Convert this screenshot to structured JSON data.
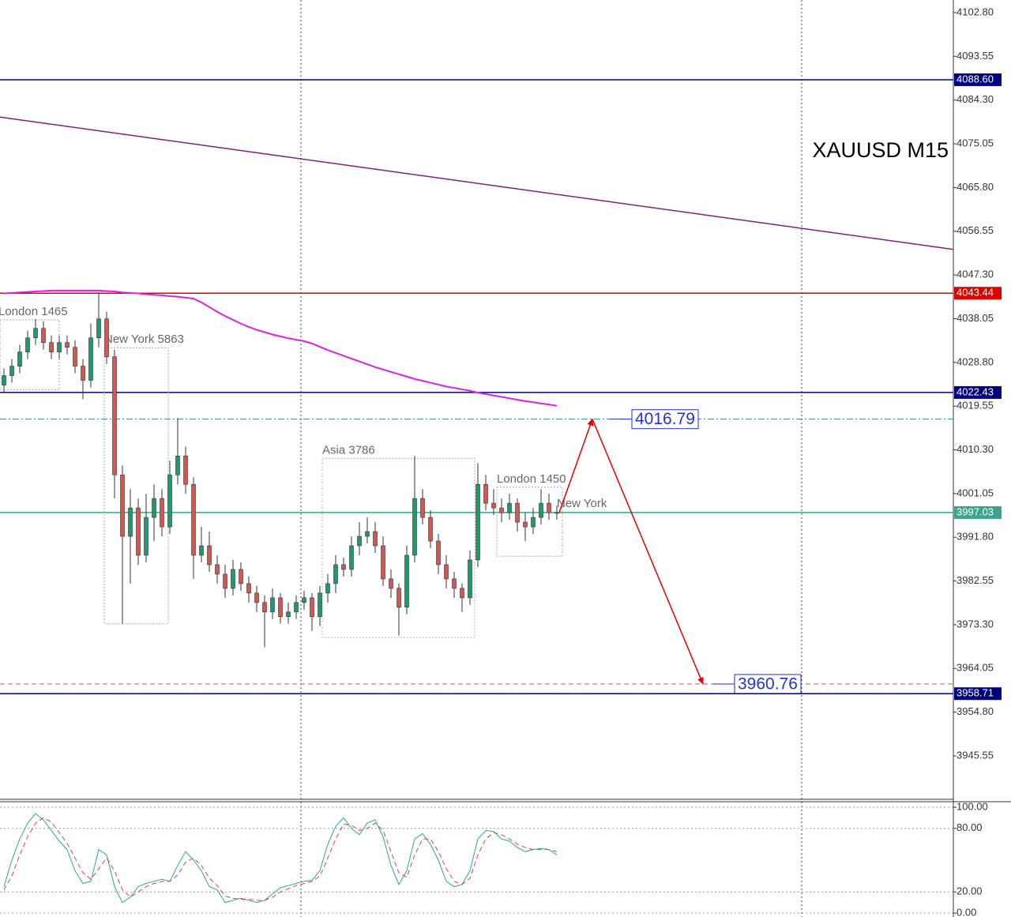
{
  "chart_data": {
    "type": "candlestick",
    "title": "XAUUSD M15",
    "ylim": [
      3936.36,
      4105.47
    ],
    "yticks": [
      {
        "value": 4102.8,
        "label": "4102.80"
      },
      {
        "value": 4093.55,
        "label": "4093.55"
      },
      {
        "value": 4084.3,
        "label": "4084.30"
      },
      {
        "value": 4075.05,
        "label": "4075.05"
      },
      {
        "value": 4065.8,
        "label": "4065.80"
      },
      {
        "value": 4056.55,
        "label": "4056.55"
      },
      {
        "value": 4047.3,
        "label": "4047.30"
      },
      {
        "value": 4038.05,
        "label": "4038.05"
      },
      {
        "value": 4028.8,
        "label": "4028.80"
      },
      {
        "value": 4019.55,
        "label": "4019.55"
      },
      {
        "value": 4010.3,
        "label": "4010.30"
      },
      {
        "value": 4001.05,
        "label": "4001.05"
      },
      {
        "value": 3991.8,
        "label": "3991.80"
      },
      {
        "value": 3982.55,
        "label": "3982.55"
      },
      {
        "value": 3973.3,
        "label": "3973.30"
      },
      {
        "value": 3964.05,
        "label": "3964.05"
      },
      {
        "value": 3954.8,
        "label": "3954.80"
      },
      {
        "value": 3945.55,
        "label": "3945.55"
      }
    ],
    "bull_color": "#1f9a6a",
    "bear_color": "#d9534f",
    "opens": [
      4024,
      4026,
      4028,
      4031,
      4034,
      4036,
      4033,
      4031,
      4033,
      4032,
      4028,
      4025,
      4034,
      4038,
      4030,
      4005,
      3992,
      3998,
      3988,
      3996,
      4000,
      3994,
      4005,
      4009,
      4003,
      3988,
      3990,
      3986,
      3984,
      3981,
      3985,
      3982,
      3980,
      3978,
      3976,
      3979,
      3975,
      3976,
      3978,
      3979,
      3975,
      3980,
      3982,
      3986,
      3985,
      3990,
      3992,
      3993,
      3990,
      3983,
      3981,
      3977,
      3988,
      4000,
      3996,
      3991,
      3986,
      3983,
      3981,
      3979,
      3987,
      4003,
      3999,
      3998,
      3997,
      3999,
      3995,
      3994,
      3996,
      3999,
      3997
    ],
    "highs": [
      4027.5,
      4029.5,
      4032.5,
      4035.5,
      4038,
      4037.5,
      4034.5,
      4034.5,
      4034.5,
      4033.5,
      4029.5,
      4037,
      4043.6,
      4039.5,
      4031.5,
      4007,
      4002,
      4000,
      4001,
      4003,
      4002,
      4008,
      4017,
      4011,
      4004.5,
      3994,
      3993,
      3988,
      3986,
      3987,
      3986.5,
      3983.5,
      3981.5,
      3979.5,
      3981,
      3980,
      3978,
      3979.5,
      3980.5,
      3980,
      3981.5,
      3984,
      3988,
      3987.5,
      3992,
      3995,
      3996,
      3995,
      3992,
      3985,
      3982,
      3990,
      4009,
      4002,
      3997.5,
      3992.5,
      3988,
      3984.5,
      3982,
      3989,
      4007.5,
      4005,
      4002,
      4000,
      4001,
      4000,
      3997,
      3998,
      4002,
      4001,
      3998.5
    ],
    "lows": [
      4022.5,
      4024.5,
      4026.5,
      4029.5,
      4032.5,
      4031.5,
      4029.5,
      4029.5,
      4030.5,
      4026.5,
      4021,
      4023.5,
      4032,
      4028.5,
      4000,
      3973.5,
      3982,
      3986,
      3986.5,
      3991,
      3992,
      3992.5,
      4003,
      4001,
      3983,
      3986.5,
      3984.5,
      3982,
      3979,
      3979.5,
      3980.5,
      3978,
      3976,
      3968.5,
      3974.5,
      3973.5,
      3973.5,
      3974.5,
      3976.5,
      3972,
      3973,
      3978,
      3980,
      3983.5,
      3983.5,
      3988,
      3990.5,
      3988.5,
      3981.5,
      3979,
      3971,
      3975.5,
      3986.5,
      3994.5,
      3989.5,
      3984,
      3981,
      3979,
      3976,
      3977.5,
      3985.5,
      3997.5,
      3996.5,
      3995,
      3995.5,
      3993,
      3991,
      3992.5,
      3994.5,
      3995.5,
      3995.5
    ],
    "closes": [
      4026,
      4028,
      4031,
      4034,
      4036,
      4033,
      4031,
      4033,
      4032,
      4028,
      4025,
      4034,
      4038,
      4030,
      4005,
      3992,
      3998,
      3988,
      3996,
      4000,
      3994,
      4005,
      4009,
      4003,
      3988,
      3990,
      3986,
      3984,
      3981,
      3985,
      3982,
      3980,
      3978,
      3976,
      3979,
      3975,
      3976,
      3978,
      3979,
      3975,
      3980,
      3982,
      3986,
      3985,
      3990,
      3992,
      3993,
      3990,
      3983,
      3981,
      3977,
      3988,
      4000,
      3996,
      3991,
      3986,
      3983,
      3981,
      3979,
      3987,
      4003,
      3999,
      3998,
      3997,
      3999,
      3995,
      3994,
      3996,
      3999,
      3997,
      3997.03
    ],
    "ma": {
      "color": "#e020e0",
      "values": [
        4043.4,
        4043.5,
        4043.6,
        4043.7,
        4043.8,
        4043.9,
        4044,
        4044,
        4044,
        4044,
        4044,
        4044,
        4044,
        4043.9,
        4043.8,
        4043.6,
        4043.5,
        4043.4,
        4043.2,
        4043.1,
        4043,
        4042.8,
        4042.7,
        4042.5,
        4042.3,
        4041.5,
        4040.5,
        4039.5,
        4038.6,
        4037.8,
        4037,
        4036.3,
        4035.7,
        4035.2,
        4034.7,
        4034.3,
        4033.9,
        4033.6,
        4033.3,
        4032.8,
        4032.1,
        4031.4,
        4030.8,
        4030.2,
        4029.6,
        4029,
        4028.4,
        4027.8,
        4027.3,
        4026.8,
        4026.3,
        4025.8,
        4025.3,
        4024.9,
        4024.5,
        4024.1,
        4023.7,
        4023.4,
        4023.1,
        4022.8,
        4022.4,
        4022.1,
        4021.8,
        4021.5,
        4021.2,
        4020.9,
        4020.6,
        4020.4,
        4020.1,
        4019.9,
        4019.6
      ]
    },
    "trendline": {
      "color": "#80207a",
      "values": [
        4080.7,
        4052.7
      ]
    },
    "levels": [
      {
        "value": 4088.6,
        "label": "4088.60",
        "color": "#000080",
        "style": "solid",
        "tag": "axis"
      },
      {
        "value": 4043.44,
        "label": "4043.44",
        "color": "#e00000",
        "style": "solid",
        "tag": "axis"
      },
      {
        "value": 4022.43,
        "label": "4022.43",
        "color": "#000080",
        "style": "solid",
        "tag": "axis"
      },
      {
        "value": 4016.79,
        "label": "4016.79",
        "color": "#2a8aa0",
        "style": "dashdot",
        "tag": "box"
      },
      {
        "value": 3997.03,
        "label": "3997.03",
        "color": "#3aa58a",
        "style": "solid",
        "tag": "axis"
      },
      {
        "value": 3960.76,
        "label": "3960.76",
        "color": "#c06060",
        "style": "dashed",
        "tag": "box"
      },
      {
        "value": 3958.71,
        "label": "3958.71",
        "color": "#000080",
        "style": "solid",
        "tag": "axis"
      }
    ],
    "forecast_color": "#e00000",
    "sessions": [
      {
        "label": "London 1465",
        "high": 4037.8,
        "low": 4023
      },
      {
        "label": "New York  5863",
        "high": 4031.9,
        "low": 3973.5
      },
      {
        "label": "Asia  3786",
        "high": 4008.5,
        "low": 3970.6
      },
      {
        "label": "London  1450",
        "high": 4002.4,
        "low": 3987.8
      },
      {
        "label": "New York"
      }
    ],
    "oscillator": {
      "ylim": [
        -3.7,
        105.2
      ],
      "yticks": [
        {
          "value": 100,
          "label": "100.00"
        },
        {
          "value": 80,
          "label": "80.00"
        },
        {
          "value": 20,
          "label": "20.00"
        },
        {
          "value": 0,
          "label": "0.00"
        }
      ],
      "series": [
        {
          "color": "#2aa59a",
          "style": "solid",
          "values": [
            25,
            50,
            70,
            85,
            94,
            88,
            78,
            68,
            60,
            40,
            28,
            30,
            60,
            55,
            25,
            10,
            15,
            25,
            28,
            30,
            32,
            30,
            45,
            58,
            50,
            40,
            25,
            22,
            10,
            12,
            14,
            12,
            10,
            12,
            18,
            24,
            26,
            28,
            30,
            31,
            40,
            65,
            82,
            90,
            80,
            74,
            85,
            88,
            72,
            45,
            27,
            40,
            70,
            75,
            65,
            50,
            30,
            25,
            27,
            40,
            70,
            78,
            77,
            70,
            68,
            62,
            58,
            60,
            61,
            60,
            55
          ]
        },
        {
          "color": "#e04040",
          "style": "dashed",
          "values": [
            22,
            35,
            55,
            72,
            85,
            90,
            86,
            76,
            66,
            52,
            38,
            32,
            42,
            52,
            40,
            22,
            15,
            20,
            25,
            28,
            30,
            30,
            36,
            48,
            52,
            45,
            33,
            26,
            16,
            14,
            13,
            13,
            12,
            12,
            15,
            20,
            23,
            26,
            28,
            30,
            35,
            52,
            70,
            84,
            83,
            78,
            80,
            85,
            78,
            58,
            38,
            34,
            55,
            70,
            70,
            58,
            42,
            30,
            27,
            33,
            55,
            70,
            76,
            74,
            70,
            65,
            62,
            60,
            60,
            60,
            58
          ]
        }
      ]
    }
  }
}
